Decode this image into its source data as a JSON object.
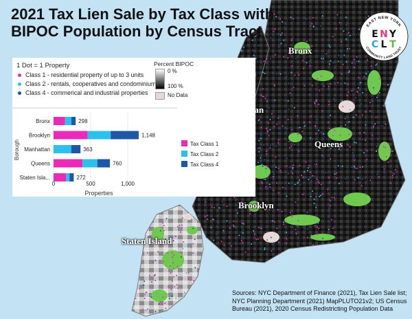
{
  "title": {
    "line1": "2021 Tax Lien Sale by Tax Class with",
    "line2": "BIPOC Population by Census Tract"
  },
  "logo": {
    "arc_top": "EAST NEW YORK",
    "letters": [
      "E",
      "N",
      "Y",
      "C",
      "L",
      "T"
    ],
    "arc_bottom": "COMMUNITY LAND TRUST"
  },
  "borough_labels": {
    "bronx": "Bronx",
    "manhattan": "Manhattan",
    "queens": "Queens",
    "brooklyn": "Brooklyn",
    "staten_island": "Staten Island"
  },
  "legend": {
    "dot_title": "1 Dot = 1 Property",
    "items": [
      {
        "label": "Class 1 - residential property of up to 3 units",
        "color": "#e62cb7"
      },
      {
        "label": "Class 2 - rentals, cooperatives and condominiums",
        "color": "#2ebde9"
      },
      {
        "label": "Class 4 - commerical and industrial properties",
        "color": "#1f4fa8"
      }
    ],
    "percent_title": "Percent BIPOC",
    "percent_low": "0 %",
    "percent_high": "100 %",
    "no_data": "No Data"
  },
  "chart_data": {
    "type": "bar",
    "orientation": "horizontal",
    "stacked": true,
    "categories": [
      "Bronx",
      "Brooklyn",
      "Manhattan",
      "Queens",
      "Staten Isla..."
    ],
    "series": [
      {
        "name": "Tax Class 1",
        "color": "#ea2bb8",
        "values": [
          155,
          460,
          0,
          390,
          170
        ]
      },
      {
        "name": "Tax Class 2",
        "color": "#2cc0ec",
        "values": [
          85,
          310,
          238,
          200,
          45
        ]
      },
      {
        "name": "Tax Class 4",
        "color": "#1f57a8",
        "values": [
          58,
          378,
          125,
          170,
          57
        ]
      }
    ],
    "totals": [
      "298",
      "1,148",
      "363",
      "760",
      "272"
    ],
    "xlabel": "Properties",
    "ylabel": "Borough",
    "xlim": [
      0,
      1300
    ],
    "xticks": [
      0,
      500,
      1000
    ],
    "xtick_labels": [
      "0",
      "500",
      "1,000"
    ],
    "grid": true,
    "legend_position": "right"
  },
  "sources": {
    "line1": "Sources: NYC Department of Finance (2021), Tax Lien Sale list;",
    "line2": "NYC Planning Department (2021) MapPLUTO21v2; US Census",
    "line3": "Bureau (2021), 2020 Census Redistricting Population Data"
  }
}
